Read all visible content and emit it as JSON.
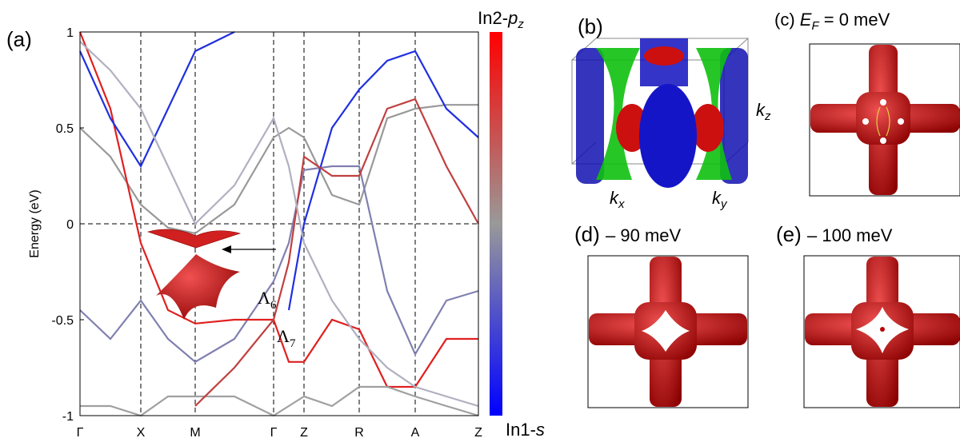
{
  "chart_data": {
    "type": "line",
    "panel_label": "(a)",
    "ylabel": "Energy (eV)",
    "ylim": [
      -1,
      1
    ],
    "yticks": [
      -1,
      -0.5,
      0,
      0.5,
      1
    ],
    "xlim": [
      0,
      4.98
    ],
    "xticks": [
      {
        "value": 0,
        "label": "Γ"
      },
      {
        "value": 0.76,
        "label": "X"
      },
      {
        "value": 1.44,
        "label": "M"
      },
      {
        "value": 2.42,
        "label": "Γ"
      },
      {
        "value": 2.8,
        "label": "Z"
      },
      {
        "value": 3.49,
        "label": "R"
      },
      {
        "value": 4.19,
        "label": "A"
      },
      {
        "value": 4.98,
        "label": "Z"
      }
    ],
    "vertical_dashed_lines": true,
    "zero_dashed_line": true,
    "x": [
      0,
      0.38,
      0.76,
      1.1,
      1.44,
      1.93,
      2.42,
      2.61,
      2.8,
      3.15,
      3.49,
      3.84,
      4.19,
      4.58,
      4.98
    ],
    "series": [
      {
        "color": "#999999",
        "values": [
          0.5,
          0.35,
          0.1,
          -0.02,
          -0.05,
          0.1,
          0.45,
          0.5,
          0.45,
          0.15,
          0.1,
          0.55,
          0.6,
          0.62,
          0.62
        ]
      },
      {
        "color": "#8080b0",
        "values": [
          -0.45,
          -0.6,
          -0.4,
          -0.6,
          -0.72,
          -0.6,
          -0.3,
          -0.1,
          0.28,
          0.3,
          0.3,
          -0.35,
          -0.68,
          -0.4,
          -0.35
        ]
      },
      {
        "color": "#e02020",
        "values": [
          1.0,
          0.6,
          -0.1,
          -0.45,
          -0.52,
          -0.5,
          -0.5,
          -0.72,
          -0.72,
          -0.5,
          -0.55,
          -0.85,
          -0.85,
          -0.6,
          -0.6
        ]
      },
      {
        "color": "#2030e0",
        "values": [
          0.9,
          0.55,
          0.3,
          0.6,
          0.9,
          1.0,
          null,
          -0.45,
          0.0,
          0.5,
          0.7,
          0.85,
          0.9,
          0.6,
          0.45
        ]
      },
      {
        "color": "#a0a0a0",
        "values": [
          -0.95,
          -0.95,
          -1.0,
          -0.9,
          -0.9,
          -0.9,
          -1.0,
          -0.95,
          -0.9,
          -0.95,
          -0.85,
          -0.85,
          -0.9,
          -0.95,
          -1.0
        ]
      },
      {
        "color": "#c04040",
        "values": [
          null,
          null,
          null,
          null,
          -0.95,
          -0.75,
          -0.5,
          -0.2,
          0.35,
          0.25,
          0.25,
          0.6,
          0.65,
          0.3,
          0.0
        ]
      },
      {
        "color": "#b0b0c0",
        "values": [
          0.95,
          0.8,
          0.6,
          0.3,
          0.0,
          0.2,
          0.55,
          0.3,
          -0.1,
          -0.4,
          -0.6,
          -0.75,
          -0.85,
          -0.9,
          -0.95
        ]
      }
    ],
    "annotations": {
      "lambda6": {
        "symbol": "Λ",
        "sub": "6"
      },
      "lambda7": {
        "symbol": "Λ",
        "sub": "7"
      }
    },
    "colorbar": {
      "top": {
        "prefix": "In2-",
        "italic": "p",
        "sub": "z"
      },
      "bottom": {
        "prefix": "In1-",
        "italic": "s"
      },
      "colors": [
        "#ff0000",
        "#999999",
        "#0000ff"
      ]
    }
  },
  "panels": {
    "b": {
      "label": "(b)",
      "kx": {
        "k": "k",
        "sub": "x"
      },
      "ky": {
        "k": "k",
        "sub": "y"
      },
      "kz": {
        "k": "k",
        "sub": "z"
      }
    },
    "c": {
      "label": "(c)",
      "energy": {
        "E": "E",
        "sub": "F",
        "rest": " = 0 meV"
      }
    },
    "d": {
      "label": "(d)",
      "energy": "– 90 meV"
    },
    "e": {
      "label": "(e)",
      "energy": "– 100 meV"
    }
  }
}
